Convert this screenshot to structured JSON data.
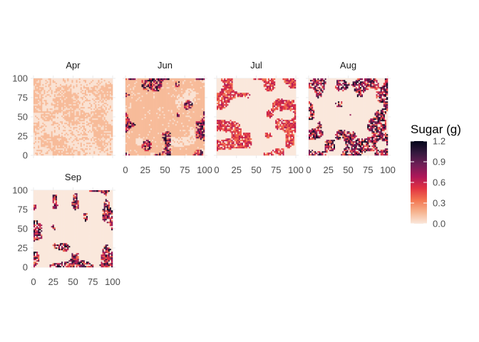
{
  "chart_data": {
    "type": "heatmap",
    "title": "",
    "xlabel": "",
    "ylabel": "",
    "facets": [
      {
        "label": "Apr",
        "pattern": "mostly high background level around 0.15 with paler speckled gaps, nearly uniform"
      },
      {
        "label": "Jun",
        "pattern": "mostly 0.15 with dense dark hot spots along the left and top edges"
      },
      {
        "label": "Jul",
        "pattern": "mostly 0 background with red clusters near 0.6 along the edges"
      },
      {
        "label": "Aug",
        "pattern": "mostly 0 background with dark clusters up to 1.2 along the edges"
      },
      {
        "label": "Sep",
        "pattern": "mostly 0 background with sparse dark speckles along the edges"
      }
    ],
    "x_ticks": [
      "0",
      "25",
      "50",
      "75",
      "100"
    ],
    "y_ticks": [
      "0",
      "25",
      "50",
      "75",
      "100"
    ],
    "xlim": [
      0,
      100
    ],
    "ylim": [
      0,
      100
    ],
    "legend": {
      "title": "Sugar (g)",
      "ticks": [
        "0.0",
        "0.3",
        "0.6",
        "0.9",
        "1.2"
      ],
      "range": [
        0,
        1.2
      ],
      "colors": [
        "#fae8dc",
        "#f6b48f",
        "#f37651",
        "#e13342",
        "#ad1759",
        "#701f57",
        "#35193e",
        "#03051a"
      ]
    },
    "grid": true
  }
}
